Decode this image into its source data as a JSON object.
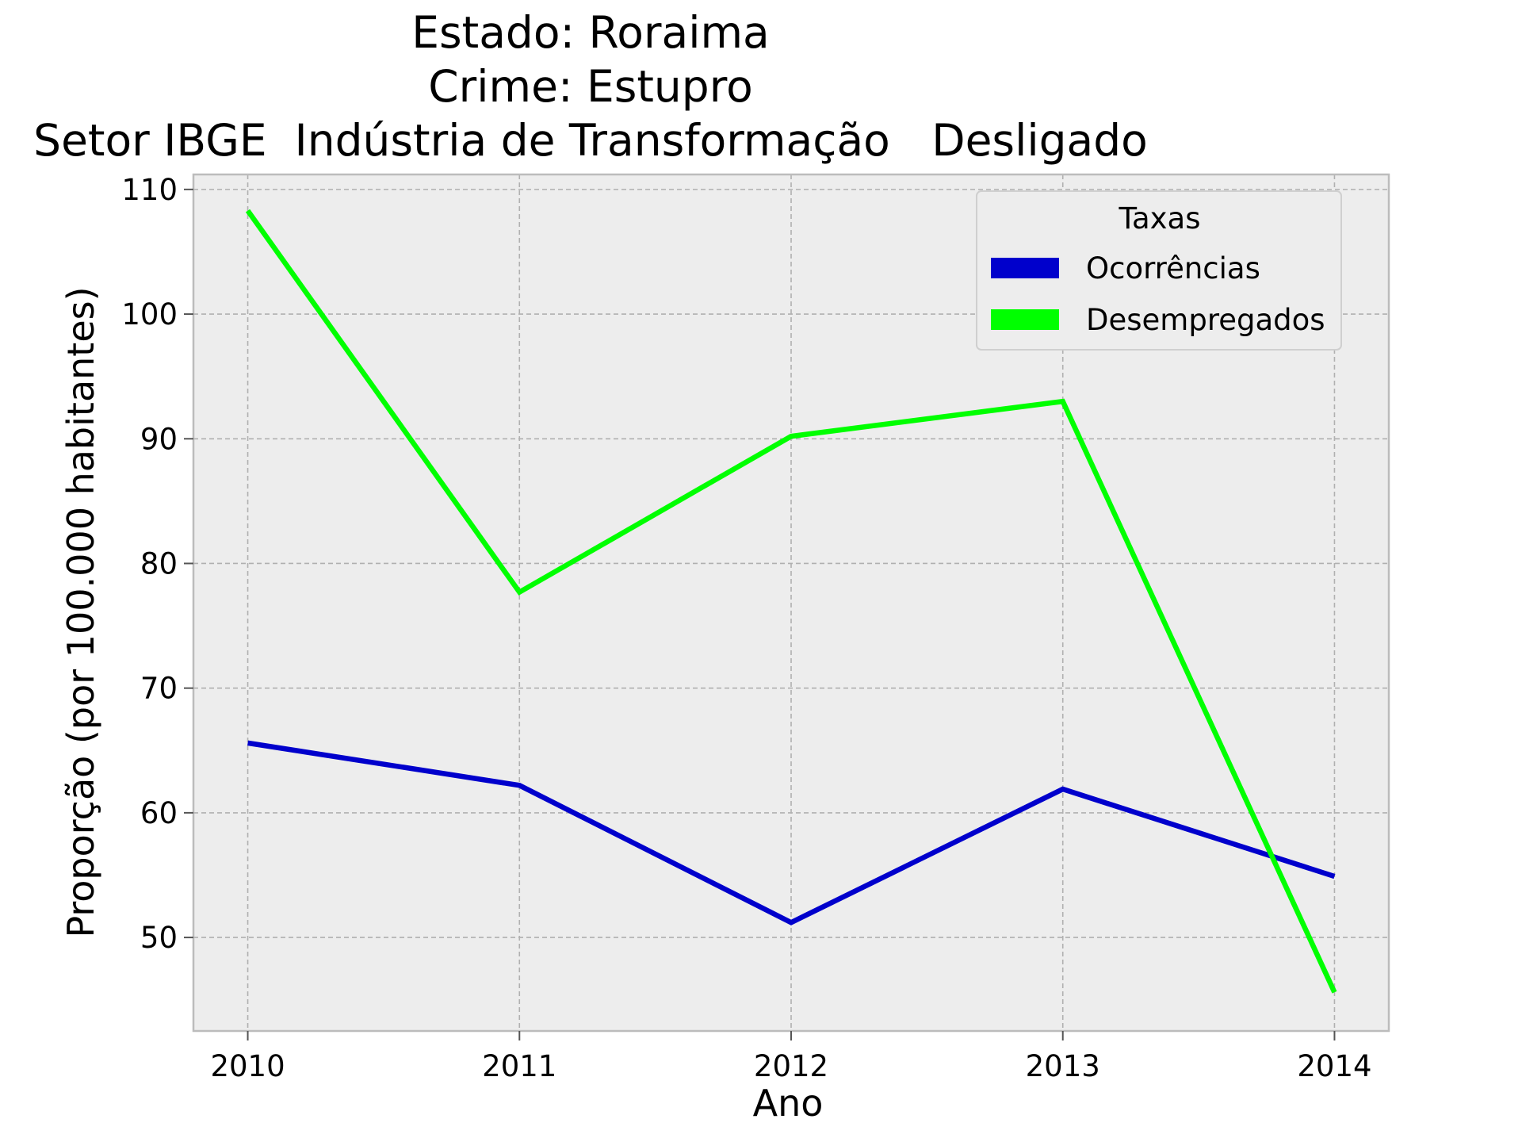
{
  "chart_data": {
    "type": "line",
    "title_lines": [
      "Estado: Roraima",
      "Crime: Estupro",
      "Setor IBGE  Indústria de Transformação   Desligado"
    ],
    "xlabel": "Ano",
    "ylabel": "Proporção (por 100.000 habitantes)",
    "x": [
      2010,
      2011,
      2012,
      2013,
      2014
    ],
    "xlim": [
      2009.8,
      2014.2
    ],
    "ylim": [
      42.5,
      111.2
    ],
    "yticks": [
      50,
      60,
      70,
      80,
      90,
      100,
      110
    ],
    "grid": true,
    "legend": {
      "title": "Taxas",
      "placement": "top-right"
    },
    "series": [
      {
        "name": "Ocorrências",
        "color": "#0000cc",
        "values": [
          65.6,
          62.2,
          51.2,
          61.9,
          54.9
        ]
      },
      {
        "name": "Desempregados",
        "color": "#00ff00",
        "values": [
          108.3,
          77.7,
          90.2,
          93.0,
          45.6
        ]
      }
    ],
    "colors": {
      "plot_background": "#ededed",
      "grid": "#b0b0b0",
      "spine": "#bcbcbc"
    }
  }
}
